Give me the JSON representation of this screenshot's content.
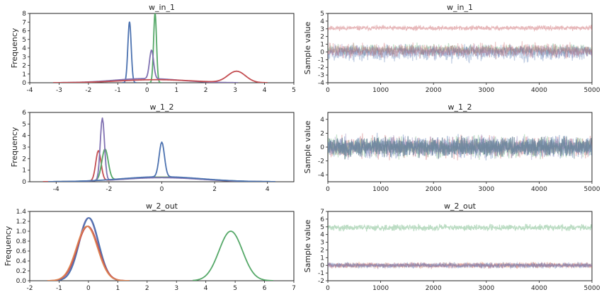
{
  "colors": {
    "blue": "#4c72b0",
    "green": "#55a868",
    "red": "#c44e52",
    "purple": "#8172b2",
    "orange": "#dd8452",
    "trace_slate": "#6e879c"
  },
  "chart_data": [
    {
      "type": "line",
      "title": "w_in_1",
      "xlabel": "",
      "ylabel": "Frequency",
      "xlim": [
        -4,
        5
      ],
      "ylim": [
        0,
        8
      ],
      "xticks": [
        -4,
        -3,
        -2,
        -1,
        0,
        1,
        2,
        3,
        4,
        5
      ],
      "yticks": [
        0,
        1,
        2,
        3,
        4,
        5,
        6,
        7,
        8
      ],
      "grid": false,
      "series": [
        {
          "name": "blue",
          "color": "blue",
          "components": [
            {
              "mu": -0.6,
              "sigma": 0.057,
              "peak": 7.0
            }
          ],
          "range": [
            -0.85,
            -0.35
          ]
        },
        {
          "name": "green",
          "color": "green",
          "components": [
            {
              "mu": 0.27,
              "sigma": 0.05,
              "peak": 8.0
            }
          ],
          "range": [
            0.05,
            0.5
          ]
        },
        {
          "name": "purple",
          "color": "purple",
          "components": [
            {
              "mu": 0.15,
              "sigma": 0.07,
              "peak": 3.3
            },
            {
              "mu": 0.0,
              "sigma": 1.1,
              "peak": 0.48
            }
          ],
          "range": [
            -3.2,
            3.1
          ]
        },
        {
          "name": "red",
          "color": "red",
          "components": [
            {
              "mu": 3.05,
              "sigma": 0.3,
              "peak": 1.3
            },
            {
              "mu": 0.3,
              "sigma": 1.25,
              "peak": 0.35
            }
          ],
          "range": [
            -3.2,
            4.1
          ]
        }
      ]
    },
    {
      "type": "line",
      "title": "w_in_1",
      "xlabel": "",
      "ylabel": "Sample value",
      "xlim": [
        0,
        5000
      ],
      "ylim": [
        -4,
        5
      ],
      "xticks": [
        0,
        1000,
        2000,
        3000,
        4000,
        5000
      ],
      "yticks": [
        -4,
        -3,
        -2,
        -1,
        0,
        1,
        2,
        3,
        4,
        5
      ],
      "grid": false,
      "series": [
        {
          "name": "red",
          "color": "red",
          "alpha": 0.4,
          "mean": 3.1,
          "spread": 0.3,
          "seed": 11
        },
        {
          "name": "green",
          "color": "green",
          "alpha": 0.35,
          "mean": 0.3,
          "spread": 0.7,
          "seed": 12
        },
        {
          "name": "purple",
          "color": "purple",
          "alpha": 0.35,
          "mean": 0.1,
          "spread": 0.8,
          "seed": 13
        },
        {
          "name": "blue",
          "color": "blue",
          "alpha": 0.35,
          "mean": -0.2,
          "spread": 1.0,
          "seed": 14
        },
        {
          "name": "red",
          "color": "red",
          "alpha": 0.3,
          "mean": 0.2,
          "spread": 0.9,
          "seed": 15
        }
      ]
    },
    {
      "type": "line",
      "title": "w_1_2",
      "xlabel": "",
      "ylabel": "Frequency",
      "xlim": [
        -5,
        5
      ],
      "ylim": [
        0,
        6
      ],
      "xticks": [
        -4,
        -2,
        0,
        2,
        4
      ],
      "yticks": [
        0,
        1,
        2,
        3,
        4,
        5,
        6
      ],
      "grid": false,
      "series": [
        {
          "name": "red",
          "color": "red",
          "components": [
            {
              "mu": -2.4,
              "sigma": 0.1,
              "peak": 2.6
            },
            {
              "mu": 0.0,
              "sigma": 1.4,
              "peak": 0.4
            }
          ],
          "range": [
            -4.5,
            4.3
          ]
        },
        {
          "name": "green",
          "color": "green",
          "components": [
            {
              "mu": -2.15,
              "sigma": 0.12,
              "peak": 2.7
            },
            {
              "mu": 0.0,
              "sigma": 1.5,
              "peak": 0.4
            }
          ],
          "range": [
            -4.3,
            4.3
          ]
        },
        {
          "name": "purple",
          "color": "purple",
          "components": [
            {
              "mu": -2.25,
              "sigma": 0.08,
              "peak": 5.4
            },
            {
              "mu": 0.0,
              "sigma": 1.5,
              "peak": 0.35
            }
          ],
          "range": [
            -4.3,
            4.3
          ]
        },
        {
          "name": "blue",
          "color": "blue",
          "components": [
            {
              "mu": 0.0,
              "sigma": 0.1,
              "peak": 3.0
            },
            {
              "mu": 0.0,
              "sigma": 1.5,
              "peak": 0.43
            }
          ],
          "range": [
            -4.3,
            4.3
          ]
        }
      ]
    },
    {
      "type": "line",
      "title": "w_1_2",
      "xlabel": "",
      "ylabel": "Sample value",
      "xlim": [
        0,
        5000
      ],
      "ylim": [
        -5,
        5
      ],
      "xticks": [
        0,
        1000,
        2000,
        3000,
        4000,
        5000
      ],
      "yticks": [
        -4,
        -2,
        0,
        2,
        4
      ],
      "grid": false,
      "series": [
        {
          "name": "red",
          "color": "red",
          "alpha": 0.35,
          "mean": 0.0,
          "spread": 1.5,
          "seed": 21
        },
        {
          "name": "green",
          "color": "green",
          "alpha": 0.35,
          "mean": 0.0,
          "spread": 1.5,
          "seed": 22
        },
        {
          "name": "purple",
          "color": "purple",
          "alpha": 0.35,
          "mean": 0.0,
          "spread": 1.5,
          "seed": 23
        },
        {
          "name": "blue",
          "color": "blue",
          "alpha": 0.4,
          "mean": 0.0,
          "spread": 1.5,
          "seed": 24
        },
        {
          "name": "slate",
          "color": "trace_slate",
          "alpha": 0.85,
          "mean": 0.0,
          "spread": 1.35,
          "seed": 25
        }
      ]
    },
    {
      "type": "line",
      "title": "w_2_out",
      "xlabel": "",
      "ylabel": "Frequency",
      "xlim": [
        -2,
        7
      ],
      "ylim": [
        0,
        1.4
      ],
      "xticks": [
        -2,
        -1,
        0,
        1,
        2,
        3,
        4,
        5,
        6,
        7
      ],
      "yticks": [
        0.0,
        0.2,
        0.4,
        0.6,
        0.8,
        1.0,
        1.2,
        1.4
      ],
      "ytick_format": "1dp",
      "grid": false,
      "series": [
        {
          "name": "purple",
          "color": "purple",
          "components": [
            {
              "mu": 0.0,
              "sigma": 0.33,
              "peak": 1.27
            }
          ],
          "range": [
            -1.4,
            1.4
          ]
        },
        {
          "name": "blue",
          "color": "blue",
          "components": [
            {
              "mu": 0.02,
              "sigma": 0.33,
              "peak": 1.27
            }
          ],
          "range": [
            -1.4,
            1.4
          ]
        },
        {
          "name": "red",
          "color": "red",
          "components": [
            {
              "mu": -0.02,
              "sigma": 0.36,
              "peak": 1.1
            }
          ],
          "range": [
            -1.4,
            1.4
          ]
        },
        {
          "name": "orange",
          "color": "orange",
          "components": [
            {
              "mu": -0.05,
              "sigma": 0.36,
              "peak": 1.1
            }
          ],
          "range": [
            -1.4,
            1.4
          ]
        },
        {
          "name": "green",
          "color": "green",
          "components": [
            {
              "mu": 4.85,
              "sigma": 0.4,
              "peak": 1.0
            }
          ],
          "range": [
            3.55,
            6.3
          ]
        }
      ]
    },
    {
      "type": "line",
      "title": "w_2_out",
      "xlabel": "",
      "ylabel": "Sample value",
      "xlim": [
        0,
        5000
      ],
      "ylim": [
        -2,
        7
      ],
      "xticks": [
        0,
        1000,
        2000,
        3000,
        4000,
        5000
      ],
      "yticks": [
        -2,
        -1,
        0,
        1,
        2,
        3,
        4,
        5,
        6,
        7
      ],
      "grid": false,
      "series": [
        {
          "name": "green",
          "color": "green",
          "alpha": 0.4,
          "mean": 4.9,
          "spread": 0.4,
          "seed": 31
        },
        {
          "name": "orange",
          "color": "orange",
          "alpha": 0.35,
          "mean": 0.0,
          "spread": 0.35,
          "seed": 32
        },
        {
          "name": "red",
          "color": "red",
          "alpha": 0.35,
          "mean": 0.0,
          "spread": 0.35,
          "seed": 33
        },
        {
          "name": "purple",
          "color": "purple",
          "alpha": 0.35,
          "mean": 0.0,
          "spread": 0.35,
          "seed": 34
        },
        {
          "name": "blue",
          "color": "blue",
          "alpha": 0.35,
          "mean": 0.0,
          "spread": 0.35,
          "seed": 35
        }
      ]
    }
  ]
}
